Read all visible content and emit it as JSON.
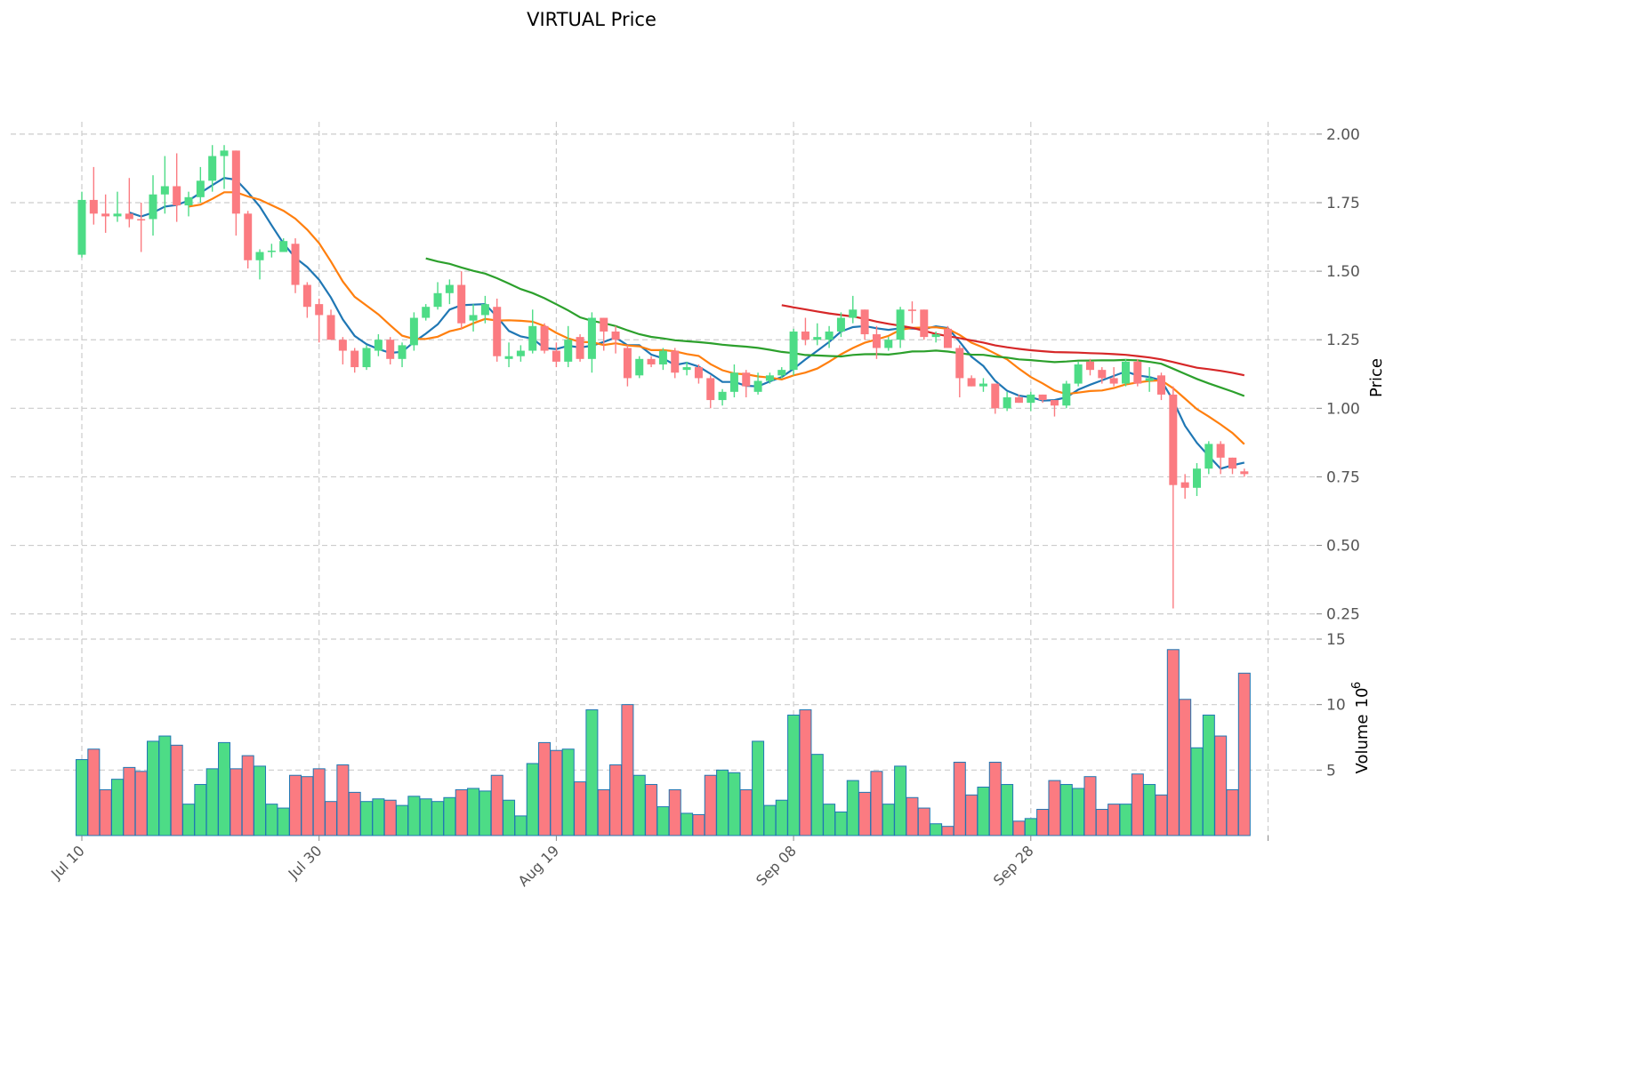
{
  "chart_data": {
    "type": "candlestick",
    "title": "VIRTUAL Price",
    "ylabel": "Price",
    "volume_label": "Volume",
    "volume_exponent": "10",
    "volume_exponent_power": "6",
    "ylim": [
      0.21,
      2.045
    ],
    "volume_ylim": [
      0,
      15.2
    ],
    "price_ticks": [
      "0.25",
      "0.50",
      "0.75",
      "1.00",
      "1.25",
      "1.50",
      "1.75",
      "2.00"
    ],
    "volume_ticks": [
      "5",
      "10",
      "15"
    ],
    "x_ticks": [
      {
        "index": 0,
        "label": "Jul 10"
      },
      {
        "index": 20,
        "label": "Jul 30"
      },
      {
        "index": 40,
        "label": "Aug 19"
      },
      {
        "index": 60,
        "label": "Sep 08"
      },
      {
        "index": 80,
        "label": "Sep 28"
      },
      {
        "index": 100,
        "label": ""
      }
    ],
    "grid": true,
    "moving_averages": [
      {
        "window": 5,
        "color": "#1f77b4"
      },
      {
        "window": 10,
        "color": "#ff7f0e"
      },
      {
        "window": 30,
        "color": "#2ca02c"
      },
      {
        "window": 60,
        "color": "#d62728"
      }
    ],
    "colors": {
      "up": "#4ddc86",
      "down": "#fb7b81",
      "volume_edge": "#1f77b4"
    },
    "ohlc": [
      [
        1.56,
        1.79,
        1.55,
        1.76
      ],
      [
        1.76,
        1.88,
        1.67,
        1.71
      ],
      [
        1.71,
        1.78,
        1.64,
        1.7
      ],
      [
        1.7,
        1.79,
        1.68,
        1.71
      ],
      [
        1.71,
        1.84,
        1.66,
        1.69
      ],
      [
        1.69,
        1.75,
        1.57,
        1.688
      ],
      [
        1.69,
        1.85,
        1.63,
        1.78
      ],
      [
        1.78,
        1.92,
        1.71,
        1.81
      ],
      [
        1.81,
        1.93,
        1.68,
        1.74
      ],
      [
        1.74,
        1.79,
        1.7,
        1.77
      ],
      [
        1.77,
        1.88,
        1.75,
        1.83
      ],
      [
        1.83,
        1.96,
        1.79,
        1.92
      ],
      [
        1.92,
        1.96,
        1.8,
        1.94
      ],
      [
        1.94,
        1.94,
        1.63,
        1.71
      ],
      [
        1.71,
        1.72,
        1.51,
        1.54
      ],
      [
        1.54,
        1.58,
        1.47,
        1.57
      ],
      [
        1.57,
        1.6,
        1.55,
        1.575
      ],
      [
        1.57,
        1.62,
        1.57,
        1.61
      ],
      [
        1.6,
        1.62,
        1.42,
        1.45
      ],
      [
        1.45,
        1.46,
        1.33,
        1.37
      ],
      [
        1.38,
        1.4,
        1.24,
        1.34
      ],
      [
        1.34,
        1.36,
        1.25,
        1.25
      ],
      [
        1.25,
        1.26,
        1.16,
        1.21
      ],
      [
        1.21,
        1.22,
        1.13,
        1.15
      ],
      [
        1.15,
        1.23,
        1.14,
        1.22
      ],
      [
        1.21,
        1.27,
        1.19,
        1.25
      ],
      [
        1.25,
        1.26,
        1.16,
        1.18
      ],
      [
        1.18,
        1.24,
        1.15,
        1.23
      ],
      [
        1.23,
        1.35,
        1.21,
        1.33
      ],
      [
        1.33,
        1.38,
        1.32,
        1.37
      ],
      [
        1.37,
        1.46,
        1.36,
        1.42
      ],
      [
        1.42,
        1.47,
        1.38,
        1.45
      ],
      [
        1.45,
        1.5,
        1.29,
        1.31
      ],
      [
        1.32,
        1.38,
        1.28,
        1.34
      ],
      [
        1.34,
        1.41,
        1.31,
        1.38
      ],
      [
        1.37,
        1.4,
        1.17,
        1.19
      ],
      [
        1.18,
        1.24,
        1.15,
        1.19
      ],
      [
        1.19,
        1.23,
        1.17,
        1.21
      ],
      [
        1.21,
        1.36,
        1.2,
        1.3
      ],
      [
        1.3,
        1.31,
        1.2,
        1.21
      ],
      [
        1.21,
        1.24,
        1.15,
        1.17
      ],
      [
        1.17,
        1.3,
        1.15,
        1.25
      ],
      [
        1.26,
        1.27,
        1.17,
        1.18
      ],
      [
        1.18,
        1.35,
        1.13,
        1.33
      ],
      [
        1.33,
        1.33,
        1.21,
        1.28
      ],
      [
        1.28,
        1.3,
        1.2,
        1.25
      ],
      [
        1.22,
        1.23,
        1.08,
        1.11
      ],
      [
        1.12,
        1.19,
        1.11,
        1.18
      ],
      [
        1.18,
        1.19,
        1.15,
        1.16
      ],
      [
        1.16,
        1.22,
        1.14,
        1.21
      ],
      [
        1.21,
        1.22,
        1.11,
        1.13
      ],
      [
        1.14,
        1.17,
        1.12,
        1.15
      ],
      [
        1.15,
        1.16,
        1.09,
        1.11
      ],
      [
        1.11,
        1.12,
        1.0,
        1.03
      ],
      [
        1.03,
        1.07,
        1.01,
        1.06
      ],
      [
        1.06,
        1.16,
        1.04,
        1.13
      ],
      [
        1.13,
        1.14,
        1.04,
        1.08
      ],
      [
        1.06,
        1.13,
        1.05,
        1.1
      ],
      [
        1.1,
        1.13,
        1.09,
        1.12
      ],
      [
        1.12,
        1.15,
        1.11,
        1.14
      ],
      [
        1.14,
        1.29,
        1.12,
        1.28
      ],
      [
        1.28,
        1.33,
        1.23,
        1.25
      ],
      [
        1.25,
        1.31,
        1.23,
        1.26
      ],
      [
        1.25,
        1.3,
        1.22,
        1.28
      ],
      [
        1.28,
        1.35,
        1.26,
        1.33
      ],
      [
        1.33,
        1.41,
        1.31,
        1.36
      ],
      [
        1.36,
        1.36,
        1.25,
        1.27
      ],
      [
        1.27,
        1.3,
        1.18,
        1.22
      ],
      [
        1.22,
        1.26,
        1.21,
        1.25
      ],
      [
        1.25,
        1.37,
        1.22,
        1.36
      ],
      [
        1.36,
        1.39,
        1.31,
        1.355
      ],
      [
        1.36,
        1.36,
        1.25,
        1.26
      ],
      [
        1.26,
        1.28,
        1.24,
        1.27
      ],
      [
        1.29,
        1.3,
        1.22,
        1.22
      ],
      [
        1.22,
        1.23,
        1.04,
        1.11
      ],
      [
        1.11,
        1.12,
        1.08,
        1.08
      ],
      [
        1.08,
        1.11,
        1.06,
        1.09
      ],
      [
        1.09,
        1.09,
        0.98,
        1.0
      ],
      [
        1.0,
        1.06,
        0.99,
        1.04
      ],
      [
        1.04,
        1.05,
        1.02,
        1.02
      ],
      [
        1.02,
        1.06,
        0.99,
        1.05
      ],
      [
        1.05,
        1.05,
        1.02,
        1.03
      ],
      [
        1.03,
        1.03,
        0.97,
        1.01
      ],
      [
        1.01,
        1.1,
        1.0,
        1.09
      ],
      [
        1.09,
        1.17,
        1.08,
        1.16
      ],
      [
        1.17,
        1.18,
        1.12,
        1.14
      ],
      [
        1.14,
        1.15,
        1.09,
        1.11
      ],
      [
        1.11,
        1.15,
        1.08,
        1.09
      ],
      [
        1.09,
        1.18,
        1.08,
        1.17
      ],
      [
        1.17,
        1.18,
        1.08,
        1.09
      ],
      [
        1.1,
        1.15,
        1.06,
        1.11
      ],
      [
        1.12,
        1.13,
        1.03,
        1.05
      ],
      [
        1.05,
        1.08,
        0.27,
        0.72
      ],
      [
        0.73,
        0.76,
        0.67,
        0.71
      ],
      [
        0.71,
        0.8,
        0.68,
        0.78
      ],
      [
        0.78,
        0.88,
        0.76,
        0.87
      ],
      [
        0.87,
        0.88,
        0.76,
        0.82
      ],
      [
        0.82,
        0.82,
        0.76,
        0.78
      ],
      [
        0.77,
        0.78,
        0.75,
        0.76
      ]
    ],
    "volume": [
      5.8,
      6.6,
      3.5,
      4.3,
      5.2,
      4.9,
      7.2,
      7.6,
      6.9,
      2.4,
      3.9,
      5.1,
      7.1,
      5.1,
      6.1,
      5.3,
      2.4,
      2.1,
      4.6,
      4.5,
      5.1,
      2.6,
      5.4,
      3.3,
      2.6,
      2.8,
      2.7,
      2.3,
      3.0,
      2.8,
      2.6,
      2.9,
      3.5,
      3.6,
      3.4,
      4.6,
      2.7,
      1.5,
      5.5,
      7.1,
      6.5,
      6.6,
      4.1,
      9.6,
      3.5,
      5.4,
      10.0,
      4.6,
      3.9,
      2.2,
      3.5,
      1.7,
      1.6,
      4.6,
      5.0,
      4.8,
      3.5,
      7.2,
      2.3,
      2.7,
      9.2,
      9.6,
      6.2,
      2.4,
      1.8,
      4.2,
      3.3,
      4.9,
      2.4,
      5.3,
      2.9,
      2.1,
      0.9,
      0.7,
      5.6,
      3.1,
      3.7,
      5.6,
      3.9,
      1.1,
      1.3,
      2.0,
      4.2,
      3.9,
      3.6,
      4.5,
      2.0,
      2.4,
      2.4,
      4.7,
      3.9,
      3.1,
      14.2,
      10.4,
      6.7,
      9.2,
      7.6,
      3.5,
      12.4
    ]
  }
}
